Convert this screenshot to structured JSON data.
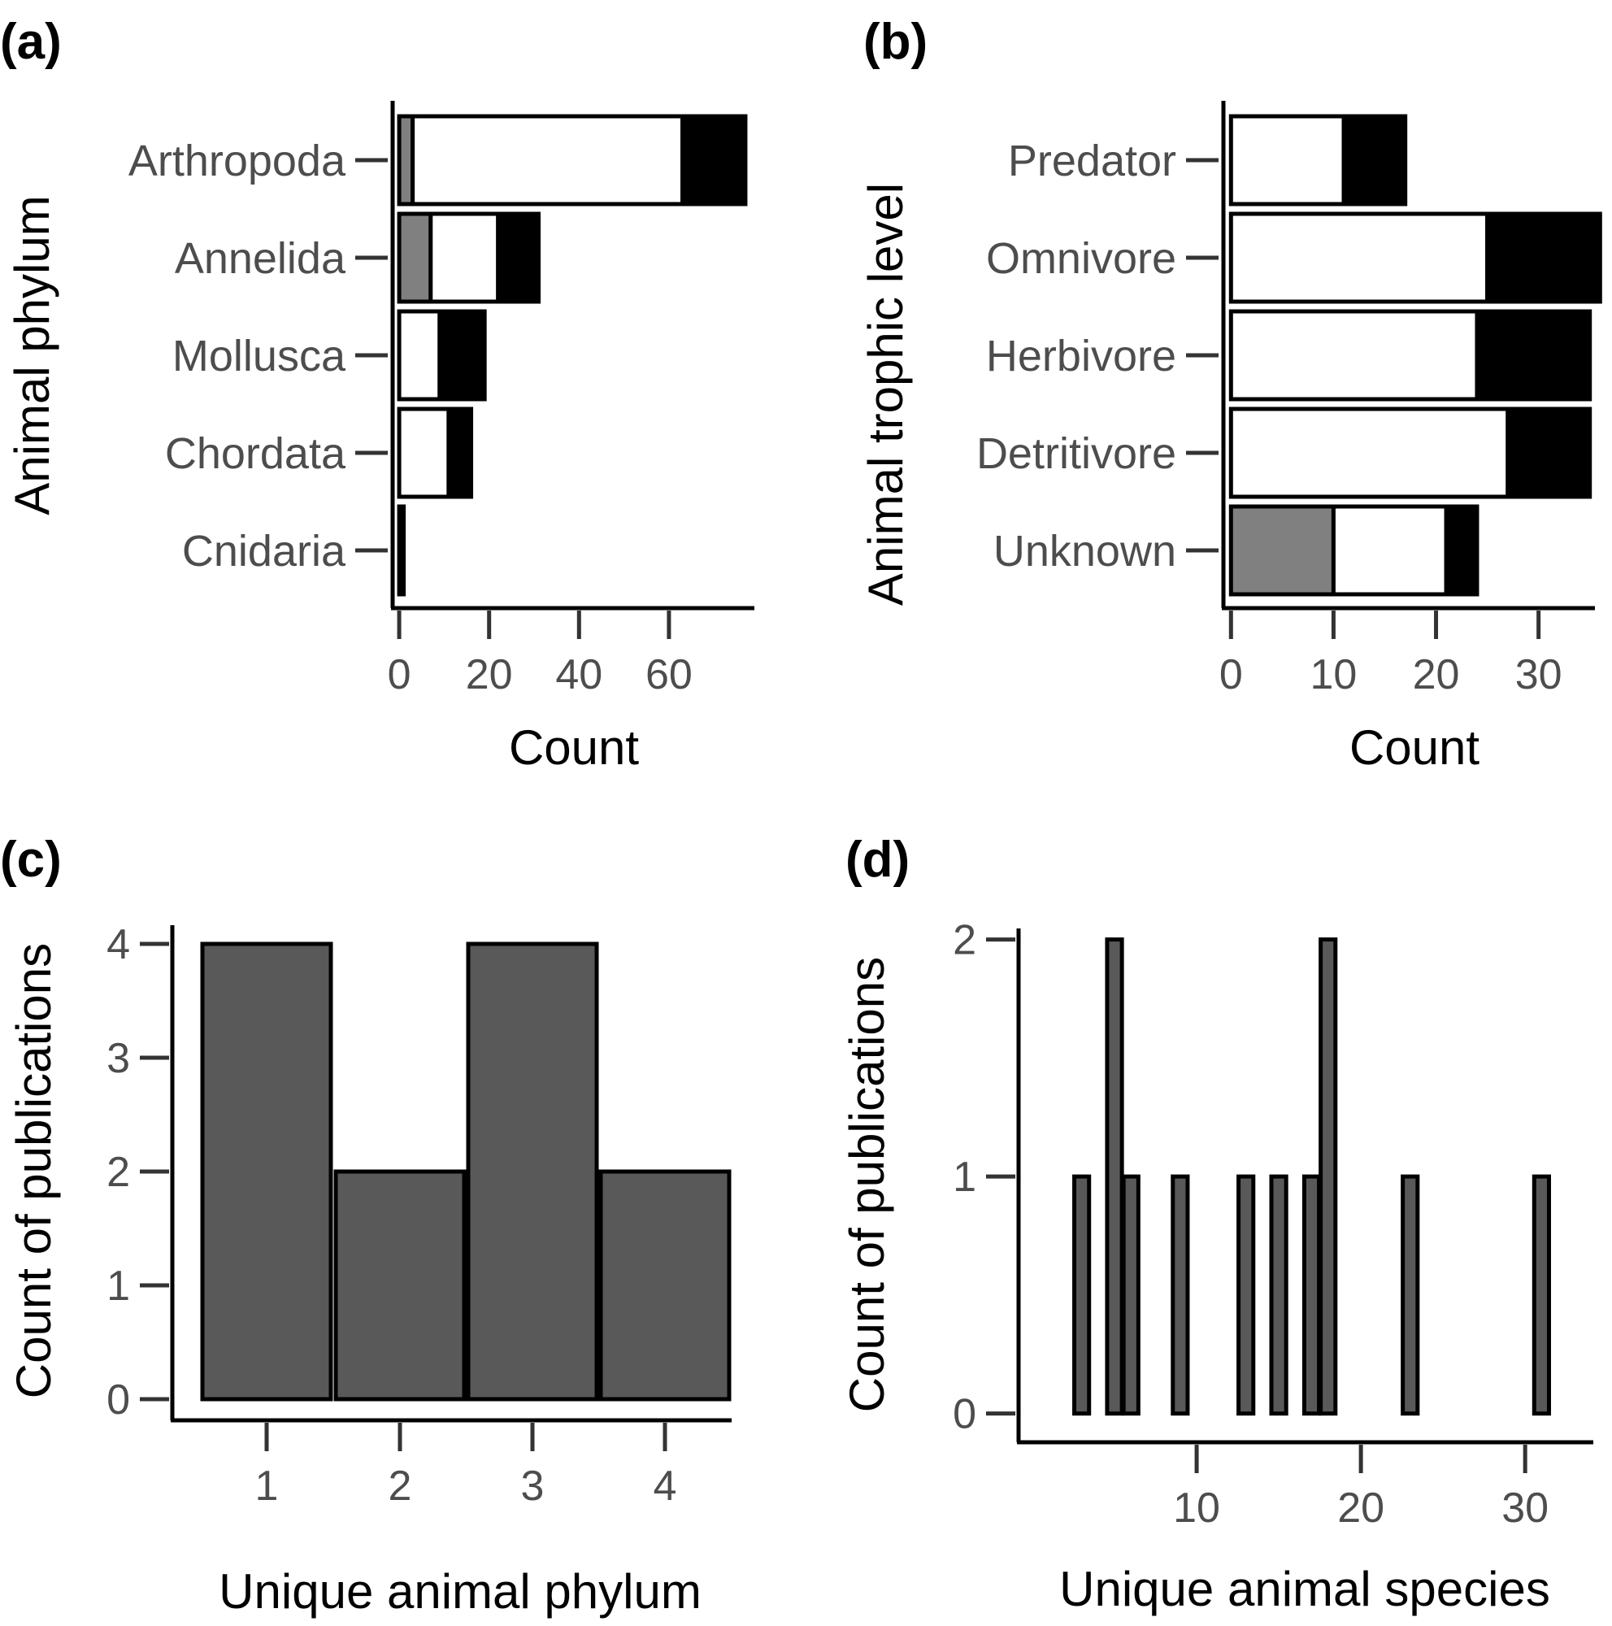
{
  "chart_data": [
    {
      "panel": "(a)",
      "type": "bar",
      "orientation": "horizontal",
      "stacked": true,
      "categories": [
        "Arthropoda",
        "Annelida",
        "Mollusca",
        "Chordata",
        "Cnidaria"
      ],
      "series": [
        {
          "values": [
            3,
            7,
            0,
            0,
            0
          ],
          "color": "#808080"
        },
        {
          "values": [
            60,
            15,
            9,
            11,
            0
          ],
          "color": "#ffffff"
        },
        {
          "values": [
            14,
            9,
            10,
            5,
            1
          ],
          "color": "#000000"
        }
      ],
      "xlabel": "Count",
      "ylabel": "Animal phylum",
      "xticks": [
        0,
        20,
        40,
        60
      ],
      "xlim": [
        -2,
        79
      ]
    },
    {
      "panel": "(b)",
      "type": "bar",
      "orientation": "horizontal",
      "stacked": true,
      "categories": [
        "Predator",
        "Omnivore",
        "Herbivore",
        "Detritivore",
        "Unknown"
      ],
      "series": [
        {
          "values": [
            0,
            0,
            0,
            0,
            10
          ],
          "color": "#808080"
        },
        {
          "values": [
            11,
            25,
            24,
            27,
            11
          ],
          "color": "#ffffff"
        },
        {
          "values": [
            6,
            11,
            11,
            8,
            3
          ],
          "color": "#000000"
        }
      ],
      "xlabel": "Count",
      "ylabel": "Animal trophic level",
      "xticks": [
        0,
        10,
        20,
        30
      ],
      "xlim": [
        -0.5,
        35.5
      ]
    },
    {
      "panel": "(c)",
      "type": "bar",
      "categories": [
        "1",
        "2",
        "3",
        "4"
      ],
      "values": [
        4,
        2,
        4,
        2
      ],
      "color": "#595959",
      "xlabel": "Unique animal phylum",
      "ylabel": "Count of publications",
      "yticks": [
        0,
        1,
        2,
        3,
        4
      ],
      "ylim": [
        -0.2,
        4.2
      ]
    },
    {
      "panel": "(d)",
      "type": "bar",
      "x": [
        3,
        5,
        6,
        9,
        13,
        15,
        17,
        18,
        23,
        31
      ],
      "values": [
        1,
        2,
        1,
        1,
        1,
        1,
        1,
        2,
        1,
        1
      ],
      "color": "#595959",
      "xlabel": "Unique animal species",
      "ylabel": "Count of publications",
      "xticks": [
        10,
        20,
        30
      ],
      "yticks": [
        0,
        1,
        2
      ],
      "xlim": [
        0,
        34
      ],
      "ylim": [
        -0.08,
        2.05
      ]
    }
  ]
}
